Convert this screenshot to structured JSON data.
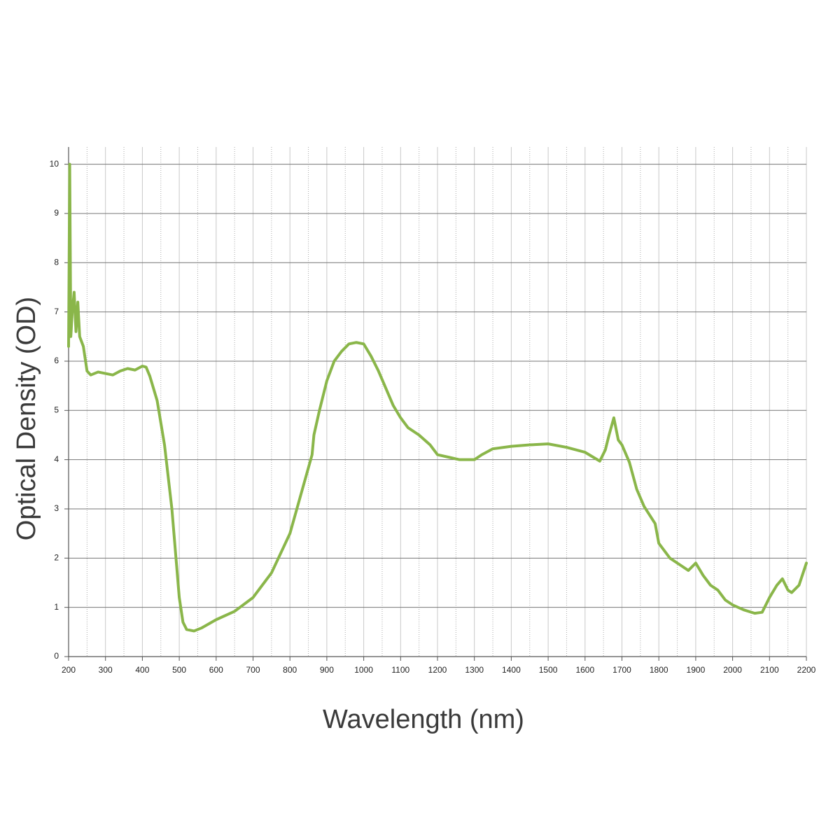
{
  "chart_data": {
    "type": "line",
    "x_label": "Wavelength (nm)",
    "y_label": "Optical Density (OD)",
    "xlim": [
      200,
      2200
    ],
    "ylim": [
      0,
      10.35
    ],
    "xticks": [
      200,
      300,
      400,
      500,
      600,
      700,
      800,
      900,
      1000,
      1100,
      1200,
      1300,
      1400,
      1500,
      1600,
      1700,
      1800,
      1900,
      2000,
      2100,
      2200
    ],
    "xminorticks": [
      250,
      350,
      450,
      550,
      650,
      750,
      850,
      950,
      1050,
      1150,
      1250,
      1350,
      1450,
      1550,
      1650,
      1750,
      1850,
      1950,
      2050,
      2150
    ],
    "yticks": [
      0,
      1,
      2,
      3,
      4,
      5,
      6,
      7,
      8,
      9,
      10
    ],
    "grid": true,
    "x": [
      200,
      203,
      206,
      210,
      215,
      220,
      225,
      230,
      240,
      250,
      260,
      280,
      300,
      320,
      340,
      360,
      380,
      400,
      410,
      420,
      440,
      460,
      480,
      500,
      510,
      520,
      540,
      560,
      600,
      650,
      700,
      750,
      800,
      830,
      860,
      865,
      880,
      900,
      920,
      940,
      960,
      980,
      1000,
      1020,
      1040,
      1060,
      1080,
      1100,
      1120,
      1150,
      1180,
      1200,
      1230,
      1260,
      1300,
      1320,
      1350,
      1400,
      1450,
      1500,
      1550,
      1600,
      1640,
      1655,
      1665,
      1678,
      1690,
      1700,
      1720,
      1740,
      1760,
      1790,
      1800,
      1830,
      1860,
      1880,
      1900,
      1920,
      1940,
      1960,
      1980,
      2000,
      2030,
      2060,
      2080,
      2100,
      2120,
      2135,
      2150,
      2160,
      2180,
      2200
    ],
    "series": [
      {
        "color": "#8ab64a",
        "values": [
          6.3,
          10.0,
          6.5,
          7.0,
          7.4,
          6.6,
          7.2,
          6.5,
          6.3,
          5.8,
          5.72,
          5.78,
          5.75,
          5.72,
          5.8,
          5.85,
          5.82,
          5.9,
          5.88,
          5.7,
          5.2,
          4.3,
          3.0,
          1.2,
          0.7,
          0.55,
          0.52,
          0.58,
          0.75,
          0.92,
          1.2,
          1.7,
          2.5,
          3.3,
          4.1,
          4.5,
          5.0,
          5.6,
          6.0,
          6.2,
          6.35,
          6.38,
          6.35,
          6.1,
          5.8,
          5.45,
          5.1,
          4.85,
          4.65,
          4.5,
          4.3,
          4.1,
          4.05,
          4.0,
          4.0,
          4.1,
          4.22,
          4.27,
          4.3,
          4.32,
          4.25,
          4.15,
          3.97,
          4.2,
          4.5,
          4.85,
          4.4,
          4.3,
          3.95,
          3.4,
          3.05,
          2.7,
          2.3,
          2.0,
          1.85,
          1.75,
          1.9,
          1.65,
          1.45,
          1.35,
          1.15,
          1.05,
          0.95,
          0.88,
          0.9,
          1.2,
          1.45,
          1.58,
          1.35,
          1.3,
          1.45,
          1.9
        ]
      }
    ]
  }
}
